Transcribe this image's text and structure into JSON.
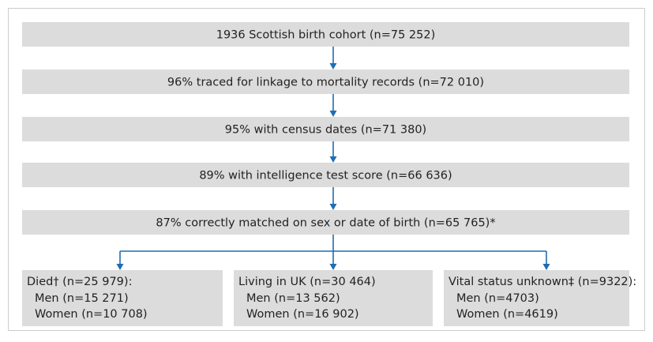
{
  "steps": [
    "1936 Scottish birth cohort (n=75 252)",
    "96% traced for linkage to mortality records (n=72 010)",
    "95% with census dates (n=71 380)",
    "89% with intelligence test score (n=66 636)",
    "87% correctly matched on sex or date of birth (n=65 765)*"
  ],
  "outcomes": [
    {
      "title": "Died† (n=25 979):",
      "lines": [
        "Men (n=15 271)",
        "Women (n=10 708)"
      ]
    },
    {
      "title": "Living in UK (n=30 464)",
      "lines": [
        "Men (n=13 562)",
        "Women (n=16 902)"
      ]
    },
    {
      "title": "Vital status unknown‡ (n=9322):",
      "lines": [
        "Men (n=4703)",
        "Women (n=4619)"
      ]
    }
  ]
}
